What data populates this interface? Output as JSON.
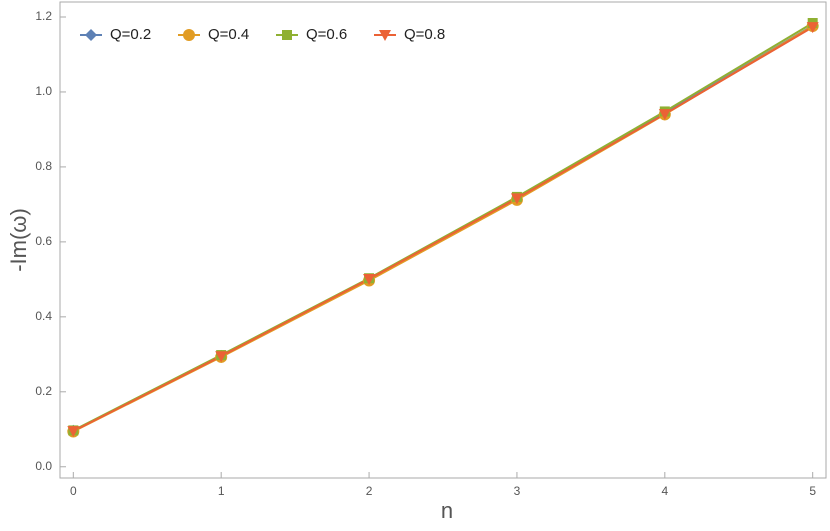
{
  "chart_data": {
    "type": "line",
    "x_label": "n",
    "y_label": "-Im(ω)",
    "x": [
      0,
      1,
      2,
      3,
      4,
      5
    ],
    "series": [
      {
        "name": "Q=0.2",
        "color": "#5e81b5",
        "marker": "diamond",
        "values": [
          0.096,
          0.296,
          0.5,
          0.713,
          0.943,
          1.177
        ]
      },
      {
        "name": "Q=0.4",
        "color": "#e19c24",
        "marker": "circle",
        "values": [
          0.094,
          0.293,
          0.497,
          0.712,
          0.94,
          1.176
        ]
      },
      {
        "name": "Q=0.6",
        "color": "#8fb032",
        "marker": "square",
        "values": [
          0.097,
          0.298,
          0.503,
          0.72,
          0.948,
          1.184
        ]
      },
      {
        "name": "Q=0.8",
        "color": "#eb6235",
        "marker": "triangle-down",
        "values": [
          0.095,
          0.295,
          0.501,
          0.716,
          0.941,
          1.173
        ]
      }
    ],
    "xlim": [
      -0.09,
      5.09
    ],
    "xticks": [
      0,
      1,
      2,
      3,
      4,
      5
    ],
    "ylim": [
      -0.03,
      1.24
    ],
    "yticks": [
      {
        "value": 0,
        "label": "0.0"
      },
      0.2,
      0.4,
      0.6,
      0.8,
      {
        "value": 1,
        "label": "1.0"
      },
      1.2
    ],
    "legend": "upper-left",
    "grid": false
  }
}
